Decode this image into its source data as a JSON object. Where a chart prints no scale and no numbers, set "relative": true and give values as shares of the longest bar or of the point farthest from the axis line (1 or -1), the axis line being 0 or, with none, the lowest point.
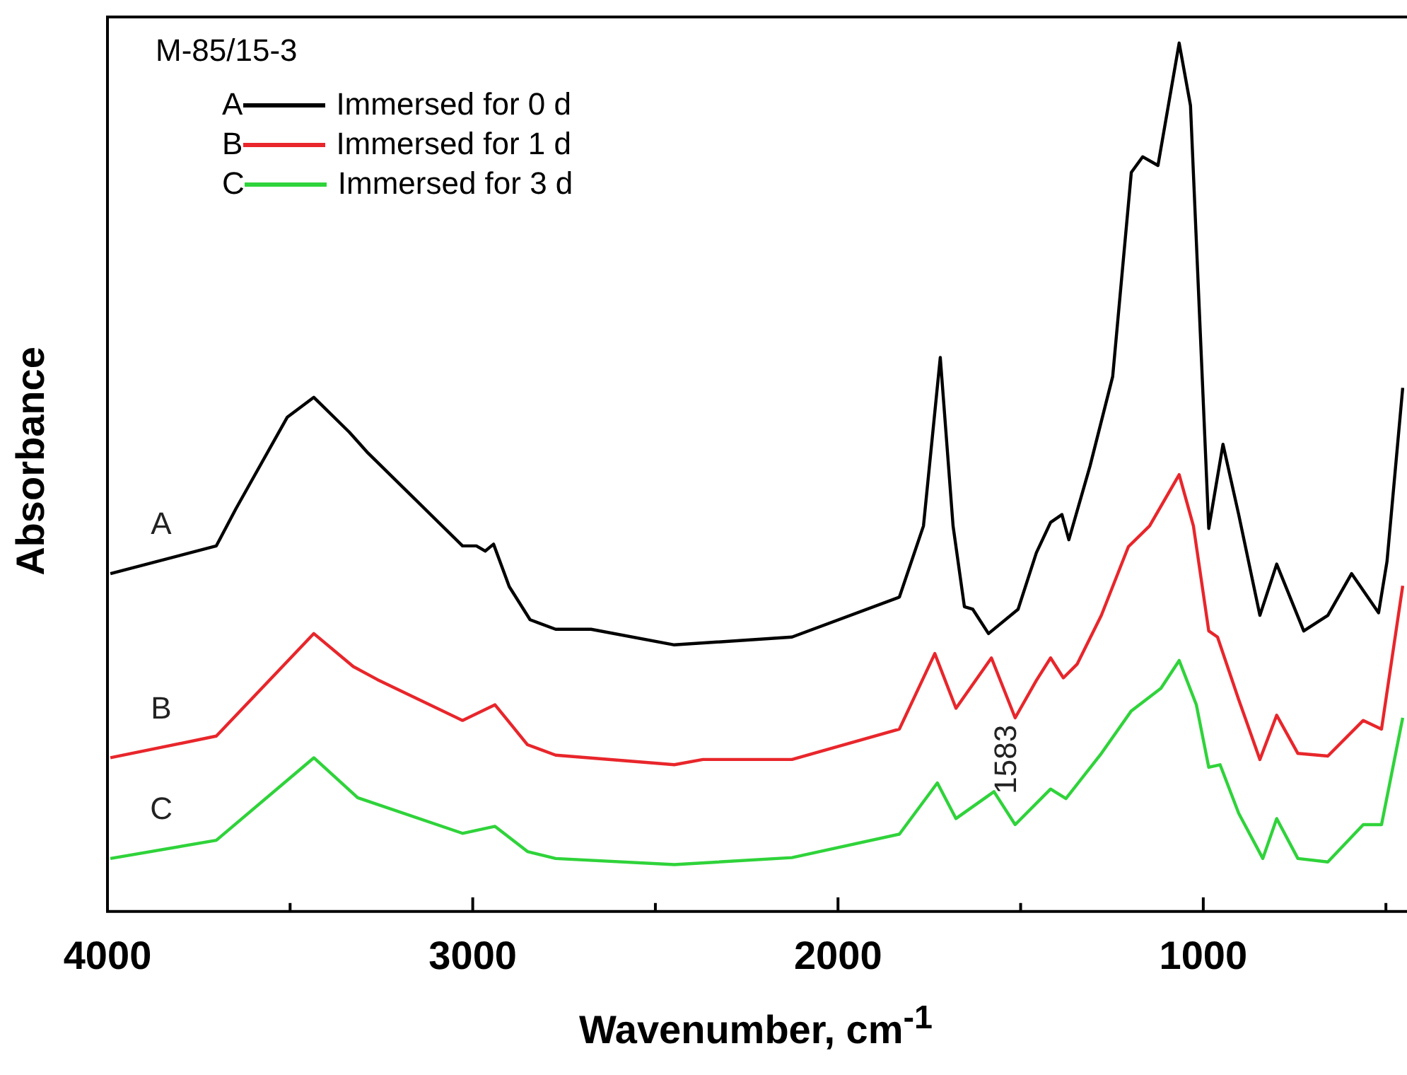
{
  "chart_data": {
    "type": "line",
    "relative": true,
    "xlabel": "Wavenumber, cm$^{-1}$",
    "ylabel": "Absorbance",
    "legend_title": "M-85/15-3",
    "legend": "top left",
    "marker": "none",
    "line_style": "solid",
    "xlim": [
      4000,
      450
    ],
    "xticks": [
      4000,
      {
        "value": 3500,
        "label": null
      },
      3000,
      {
        "value": 2500,
        "label": null
      },
      2000,
      {
        "value": 1500,
        "label": null
      },
      1000,
      {
        "value": 500,
        "label": null
      }
    ],
    "annotations": [
      "A",
      "B",
      "C",
      "1583"
    ],
    "series": [
      {
        "name": "Immersed for 0 d",
        "color": "#000000",
        "x": [
          3992,
          3702,
          3648,
          3508,
          3435,
          3338,
          3287,
          3028,
          2990,
          2966,
          2943,
          2900,
          2843,
          2773,
          2676,
          2448,
          2126,
          1832,
          1766,
          1720,
          1685,
          1654,
          1631,
          1588,
          1507,
          1457,
          1418,
          1387,
          1368,
          1310,
          1248,
          1197,
          1166,
          1124,
          1066,
          1035,
          985,
          946,
          903,
          845,
          799,
          725,
          659,
          594,
          520,
          497,
          454
        ],
        "values": [
          0.389,
          0.421,
          0.464,
          0.569,
          0.592,
          0.552,
          0.528,
          0.421,
          0.421,
          0.415,
          0.423,
          0.374,
          0.336,
          0.325,
          0.325,
          0.307,
          0.316,
          0.362,
          0.444,
          0.638,
          0.444,
          0.351,
          0.348,
          0.32,
          0.348,
          0.413,
          0.448,
          0.457,
          0.428,
          0.513,
          0.616,
          0.851,
          0.869,
          0.859,
          1.0,
          0.928,
          0.441,
          0.538,
          0.457,
          0.341,
          0.4,
          0.323,
          0.341,
          0.389,
          0.344,
          0.403,
          0.603
        ]
      },
      {
        "name": "Immersed for 1 d",
        "color": "#e8262b",
        "x": [
          3992,
          3702,
          3435,
          3327,
          3261,
          3028,
          2939,
          2850,
          2773,
          2448,
          2370,
          2126,
          1832,
          1735,
          1677,
          1580,
          1515,
          1457,
          1418,
          1383,
          1345,
          1279,
          1205,
          1147,
          1066,
          1027,
          985,
          961,
          903,
          845,
          799,
          741,
          659,
          562,
          512,
          454
        ],
        "values": [
          0.177,
          0.202,
          0.32,
          0.282,
          0.267,
          0.22,
          0.238,
          0.192,
          0.18,
          0.169,
          0.175,
          0.175,
          0.21,
          0.297,
          0.234,
          0.292,
          0.223,
          0.266,
          0.292,
          0.269,
          0.285,
          0.341,
          0.42,
          0.444,
          0.503,
          0.444,
          0.323,
          0.316,
          0.244,
          0.175,
          0.226,
          0.182,
          0.179,
          0.22,
          0.21,
          0.375
        ]
      },
      {
        "name": "Immersed for 3 d",
        "color": "#2fd33a",
        "x": [
          3992,
          3702,
          3435,
          3315,
          3028,
          2939,
          2850,
          2773,
          2448,
          2126,
          1832,
          1728,
          1677,
          1573,
          1515,
          1418,
          1376,
          1279,
          1197,
          1116,
          1066,
          1019,
          985,
          954,
          903,
          837,
          799,
          741,
          659,
          562,
          512,
          454
        ],
        "values": [
          0.061,
          0.082,
          0.177,
          0.131,
          0.09,
          0.098,
          0.069,
          0.061,
          0.054,
          0.062,
          0.089,
          0.148,
          0.107,
          0.138,
          0.1,
          0.141,
          0.13,
          0.182,
          0.231,
          0.257,
          0.289,
          0.238,
          0.166,
          0.169,
          0.113,
          0.061,
          0.107,
          0.061,
          0.057,
          0.1,
          0.1,
          0.223
        ]
      }
    ]
  }
}
